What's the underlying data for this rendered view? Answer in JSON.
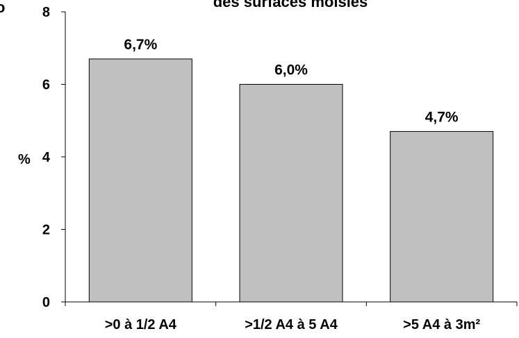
{
  "chart_data": {
    "type": "bar",
    "title_fragment": "des surfaces moisies",
    "corner_fragment": "o",
    "categories": [
      ">0 à 1/2 A4",
      ">1/2 A4 à 5 A4",
      ">5 A4 à 3m²"
    ],
    "values": [
      6.7,
      6.0,
      4.7
    ],
    "data_labels": [
      "6,7%",
      "6,0%",
      "4,7%"
    ],
    "ylabel": "%",
    "ylim": [
      0,
      8
    ],
    "yticks": [
      0,
      2,
      4,
      6,
      8
    ],
    "ytick_labels": [
      "0",
      "2",
      "4",
      "6",
      "8"
    ],
    "grid": false,
    "bar_color": "#c0c0c0",
    "bar_edge_color": "#000000"
  }
}
